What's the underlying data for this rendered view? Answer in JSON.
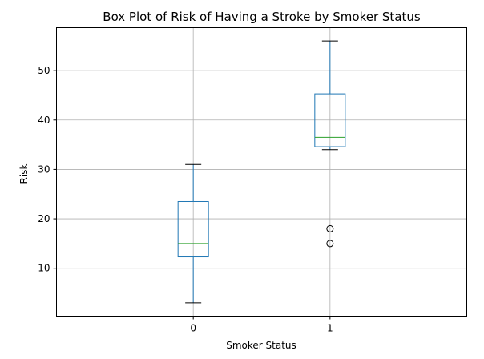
{
  "chart_data": {
    "type": "box",
    "title": "Box Plot of Risk of Having a Stroke by Smoker Status",
    "xlabel": "Smoker Status",
    "ylabel": "Risk",
    "ylim": [
      0.3,
      58.7
    ],
    "yticks": [
      10,
      20,
      30,
      40,
      50
    ],
    "grid": true,
    "categories": [
      "0",
      "1"
    ],
    "boxes": [
      {
        "category": "0",
        "whisker_low": 3,
        "q1": 12.3,
        "median": 15,
        "q3": 23.5,
        "whisker_high": 31,
        "outliers": []
      },
      {
        "category": "1",
        "whisker_low": 34,
        "q1": 34.6,
        "median": 36.5,
        "q3": 45.3,
        "whisker_high": 56,
        "outliers": [
          18,
          15
        ]
      }
    ],
    "colors": {
      "box": "#1f77b4",
      "median": "#2ca02c",
      "whisker": "#000000",
      "grid": "#b0b0b0",
      "outlier": "#000000"
    }
  }
}
